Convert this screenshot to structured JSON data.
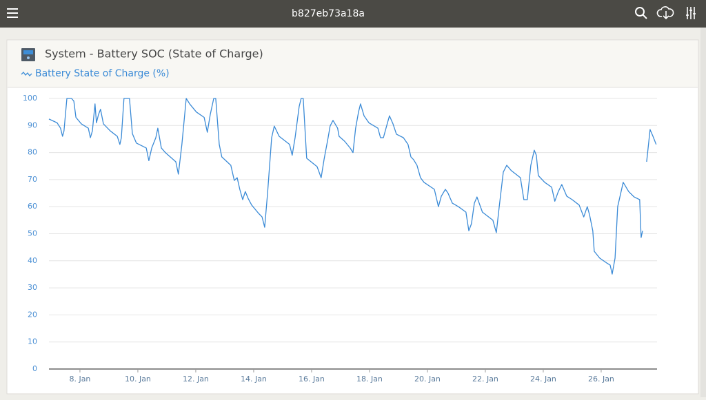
{
  "header": {
    "title": "b827eb73a18a"
  },
  "chart_data": {
    "type": "line",
    "title": "System - Battery SOC (State of Charge)",
    "x": [
      6.93,
      7.21,
      7.33,
      7.4,
      7.45,
      7.55,
      7.71,
      7.79,
      7.86,
      8.05,
      8.29,
      8.36,
      8.43,
      8.52,
      8.57,
      8.64,
      8.71,
      8.81,
      9.05,
      9.29,
      9.38,
      9.43,
      9.52,
      9.71,
      9.81,
      9.95,
      10.29,
      10.38,
      10.48,
      10.62,
      10.69,
      10.81,
      10.95,
      11.31,
      11.4,
      11.52,
      11.67,
      11.79,
      12.02,
      12.29,
      12.4,
      12.5,
      12.62,
      12.69,
      12.81,
      12.9,
      13.21,
      13.33,
      13.43,
      13.52,
      13.62,
      13.71,
      13.81,
      13.93,
      14.17,
      14.29,
      14.38,
      14.48,
      14.62,
      14.71,
      14.88,
      15.24,
      15.33,
      15.43,
      15.57,
      15.64,
      15.71,
      15.83,
      16.19,
      16.33,
      16.43,
      16.57,
      16.64,
      16.74,
      16.9,
      16.95,
      17.14,
      17.33,
      17.43,
      17.52,
      17.62,
      17.69,
      17.81,
      17.98,
      18.29,
      18.38,
      18.48,
      18.62,
      18.69,
      18.81,
      18.93,
      19.17,
      19.33,
      19.43,
      19.52,
      19.64,
      19.76,
      19.88,
      20.24,
      20.38,
      20.48,
      20.62,
      20.71,
      20.86,
      21.07,
      21.33,
      21.43,
      21.52,
      21.62,
      21.71,
      21.9,
      22.26,
      22.38,
      22.48,
      22.62,
      22.74,
      22.9,
      23.21,
      23.33,
      23.45,
      23.57,
      23.69,
      23.76,
      23.83,
      24.05,
      24.29,
      24.4,
      24.52,
      24.64,
      24.81,
      25.0,
      25.24,
      25.4,
      25.52,
      25.6,
      25.71,
      25.76,
      25.95,
      26.19,
      26.31,
      26.38,
      26.48,
      26.57,
      26.76,
      26.95,
      27.14,
      27.33,
      27.38,
      27.43,
      27.48,
      27.57,
      27.69,
      27.79,
      27.9
    ],
    "series": [
      {
        "name": "Battery State of Charge (%)",
        "color": "#3a8ad6",
        "values": [
          92.4,
          91,
          89,
          86,
          88,
          100,
          100,
          99,
          93,
          90.6,
          89,
          85.5,
          88,
          98,
          91,
          94,
          96,
          90.6,
          88,
          86,
          83,
          85.5,
          100,
          100,
          87,
          83.5,
          81.7,
          77,
          81.7,
          85.5,
          89,
          81.7,
          80,
          76.6,
          72,
          83,
          100,
          98,
          95,
          93,
          87.5,
          94,
          100,
          100,
          83,
          78.4,
          75.3,
          69.7,
          70.7,
          66.4,
          62.6,
          65.6,
          63,
          60.6,
          57.5,
          56.2,
          52.4,
          65,
          85.5,
          89.8,
          86,
          83,
          79,
          85.5,
          97,
          100,
          100,
          77.9,
          74.8,
          70.7,
          77.4,
          85.5,
          89.8,
          91.9,
          89,
          86,
          84.2,
          81.7,
          80,
          89,
          95,
          98,
          93.6,
          91,
          89,
          85.5,
          85.5,
          91,
          93.6,
          90.6,
          86.8,
          85.5,
          83,
          78.4,
          77.4,
          75.3,
          70.7,
          69,
          66.4,
          60,
          63.9,
          66.4,
          65,
          61.3,
          60,
          58,
          51.1,
          53.7,
          61.3,
          63.6,
          58,
          55,
          50.4,
          60,
          72.8,
          75.3,
          73.3,
          70.7,
          62.6,
          62.6,
          75.3,
          80.9,
          79,
          71.5,
          69,
          67.2,
          62,
          65.6,
          68.2,
          63.9,
          62.6,
          60.6,
          56.2,
          60,
          57,
          51.1,
          43.5,
          41,
          39.2,
          38.4,
          35.1,
          41,
          60,
          69,
          65.6,
          63.6,
          62.6,
          48.6,
          51.1,
          null,
          76.6,
          88.5,
          86,
          83
        ]
      }
    ],
    "xlim": [
      6.93,
      27.93
    ],
    "xticks": [
      {
        "value": 8,
        "label": "8. Jan"
      },
      {
        "value": 10,
        "label": "10. Jan"
      },
      {
        "value": 12,
        "label": "12. Jan"
      },
      {
        "value": 14,
        "label": "14. Jan"
      },
      {
        "value": 16,
        "label": "16. Jan"
      },
      {
        "value": 18,
        "label": "18. Jan"
      },
      {
        "value": 20,
        "label": "20. Jan"
      },
      {
        "value": 22,
        "label": "22. Jan"
      },
      {
        "value": 24,
        "label": "24. Jan"
      },
      {
        "value": 26,
        "label": "26. Jan"
      }
    ],
    "ylim": [
      0,
      100
    ],
    "yticks": [
      0,
      10,
      20,
      30,
      40,
      50,
      60,
      70,
      80,
      90,
      100
    ],
    "grid": true
  }
}
